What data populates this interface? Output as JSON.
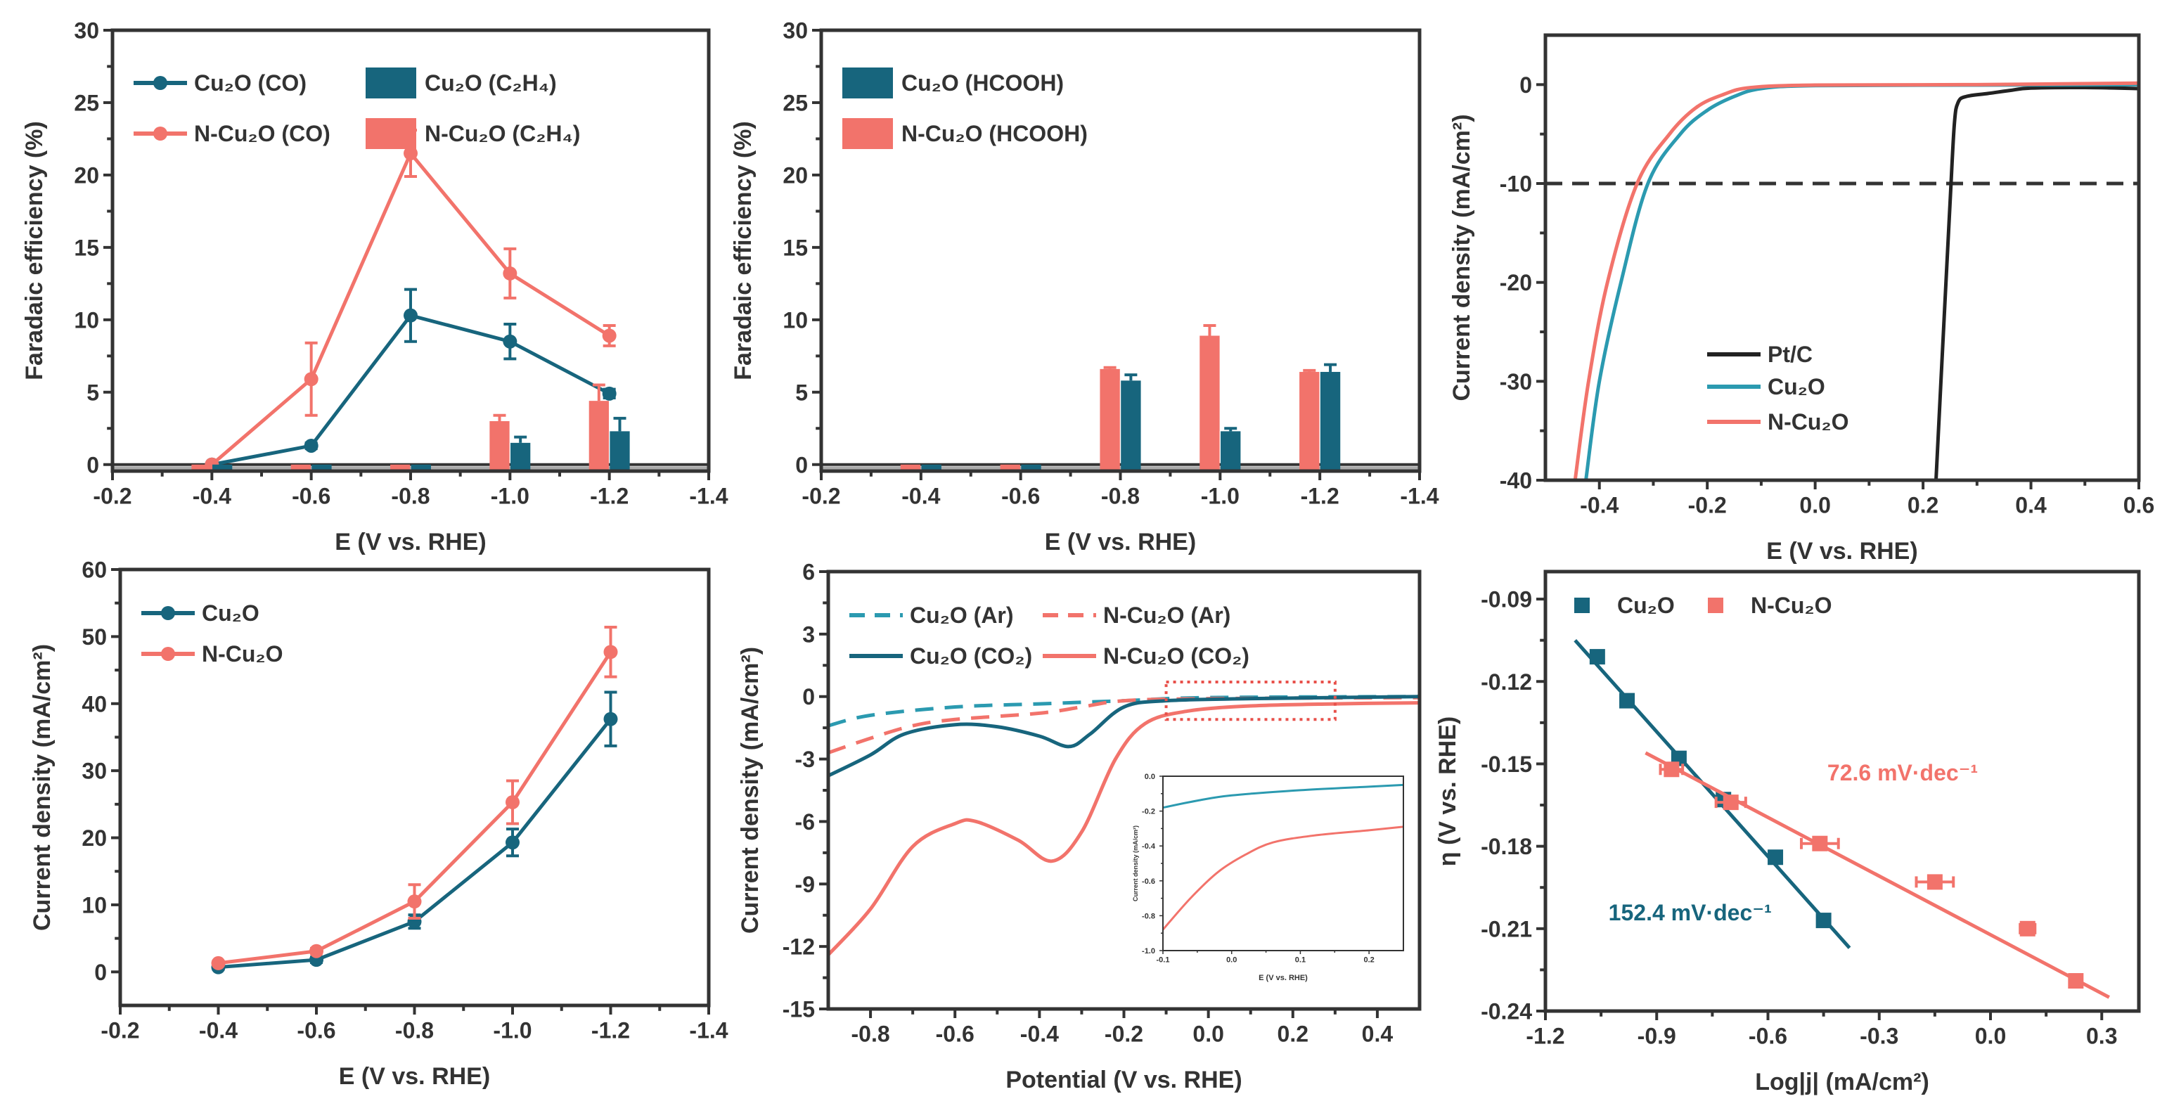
{
  "colors": {
    "teal": "#17657d",
    "teal_light": "#2b9ab0",
    "red": "#f2736b",
    "black": "#222222",
    "box_red": "#e8504a"
  },
  "chart_data": [
    {
      "id": "fe-co-c2h4",
      "type": "line+bar",
      "xlabel": "E (V vs. RHE)",
      "ylabel": "Faradaic efficiency (%)",
      "xlim": [
        -0.2,
        -1.4
      ],
      "ylim": [
        -0.45,
        30
      ],
      "xticks": [
        -0.2,
        -0.4,
        -0.6,
        -0.8,
        -1.0,
        -1.2,
        -1.4
      ],
      "xtick_labels": [
        "-0.2",
        "-0.4",
        "-0.6",
        "-0.8",
        "-1.0",
        "-1.2",
        "-1.4"
      ],
      "yticks": [
        0,
        5,
        10,
        15,
        20,
        25,
        30
      ],
      "ytick_labels": [
        "0",
        "5",
        "10",
        "15",
        "20",
        "25",
        "30"
      ],
      "zero_line": true,
      "series": [
        {
          "name": "Cu₂O (CO)",
          "kind": "line",
          "marker": "circle",
          "color": "teal",
          "x": [
            -0.4,
            -0.6,
            -0.8,
            -1.0,
            -1.2
          ],
          "y": [
            0,
            1.3,
            10.3,
            8.5,
            4.9
          ],
          "err": [
            0,
            0.2,
            1.8,
            1.2,
            0.3
          ]
        },
        {
          "name": "N-Cu₂O (CO)",
          "kind": "line",
          "marker": "circle",
          "color": "red",
          "x": [
            -0.4,
            -0.6,
            -0.8,
            -1.0,
            -1.2
          ],
          "y": [
            0,
            5.9,
            21.5,
            13.2,
            8.9
          ],
          "err": [
            0,
            2.5,
            1.6,
            1.7,
            0.7
          ]
        },
        {
          "name": "Cu₂O (C₂H₄)",
          "kind": "bar",
          "color": "teal",
          "x": [
            -0.4,
            -0.6,
            -0.8,
            -1.0,
            -1.2
          ],
          "y": [
            0,
            0,
            0,
            1.5,
            2.3
          ],
          "err": [
            0,
            0,
            0,
            0.4,
            0.9
          ]
        },
        {
          "name": "N-Cu₂O (C₂H₄)",
          "kind": "bar",
          "color": "red",
          "x": [
            -0.4,
            -0.6,
            -0.8,
            -1.0,
            -1.2
          ],
          "y": [
            0,
            0,
            0,
            3.0,
            4.4
          ],
          "err": [
            0,
            0,
            0,
            0.4,
            1.1
          ]
        }
      ]
    },
    {
      "id": "fe-hcooh",
      "type": "bar",
      "xlabel": "E (V vs. RHE)",
      "ylabel": "Faradaic efficiency (%)",
      "xlim": [
        -0.2,
        -1.4
      ],
      "ylim": [
        -0.45,
        30
      ],
      "xticks": [
        -0.2,
        -0.4,
        -0.6,
        -0.8,
        -1.0,
        -1.2,
        -1.4
      ],
      "xtick_labels": [
        "-0.2",
        "-0.4",
        "-0.6",
        "-0.8",
        "-1.0",
        "-1.2",
        "-1.4"
      ],
      "yticks": [
        0,
        5,
        10,
        15,
        20,
        25,
        30
      ],
      "ytick_labels": [
        "0",
        "5",
        "10",
        "15",
        "20",
        "25",
        "30"
      ],
      "zero_line": true,
      "series": [
        {
          "name": "Cu₂O (HCOOH)",
          "kind": "bar",
          "color": "teal",
          "x": [
            -0.4,
            -0.6,
            -0.8,
            -1.0,
            -1.2
          ],
          "y": [
            0,
            0,
            5.8,
            2.3,
            6.4
          ],
          "err": [
            0,
            0,
            0.4,
            0.2,
            0.5
          ]
        },
        {
          "name": "N-Cu₂O (HCOOH)",
          "kind": "bar",
          "color": "red",
          "x": [
            -0.4,
            -0.6,
            -0.8,
            -1.0,
            -1.2
          ],
          "y": [
            0,
            0,
            6.6,
            8.9,
            6.4
          ],
          "err": [
            0,
            0,
            0.1,
            0.7,
            0.1
          ]
        }
      ]
    },
    {
      "id": "her-lsv",
      "type": "line",
      "xlabel": "E (V vs. RHE)",
      "ylabel": "Current density (mA/cm²)",
      "xlim": [
        -0.5,
        0.6
      ],
      "ylim": [
        -40,
        5
      ],
      "xticks": [
        -0.4,
        -0.2,
        0.0,
        0.2,
        0.4,
        0.6
      ],
      "xtick_labels": [
        "-0.4",
        "-0.2",
        "0.0",
        "0.2",
        "0.4",
        "0.6"
      ],
      "yticks": [
        -40,
        -30,
        -20,
        -10,
        0
      ],
      "ytick_labels": [
        "-40",
        "-30",
        "-20",
        "-10",
        "0"
      ],
      "reference_line": -10,
      "series": [
        {
          "name": "Pt/C",
          "kind": "line",
          "smooth": true,
          "color": "black",
          "x": [
            0.224,
            0.235,
            0.25,
            0.258,
            0.265,
            0.28,
            0.32,
            0.36,
            0.4,
            0.5,
            0.6
          ],
          "y": [
            -40,
            -28,
            -12,
            -4,
            -1.8,
            -1.2,
            -0.9,
            -0.6,
            -0.35,
            -0.3,
            -0.4
          ]
        },
        {
          "name": "Cu₂O",
          "kind": "line",
          "smooth": true,
          "color": "teal_light",
          "x": [
            -0.425,
            -0.4,
            -0.36,
            -0.31,
            -0.25,
            -0.2,
            -0.15,
            -0.1,
            0.0,
            0.3,
            0.6
          ],
          "y": [
            -40,
            -30,
            -20,
            -10,
            -5,
            -2.6,
            -1.2,
            -0.4,
            -0.1,
            -0.05,
            0
          ]
        },
        {
          "name": "N-Cu₂O",
          "kind": "line",
          "smooth": true,
          "color": "red",
          "x": [
            -0.445,
            -0.42,
            -0.385,
            -0.33,
            -0.27,
            -0.22,
            -0.17,
            -0.12,
            0.0,
            0.3,
            0.6
          ],
          "y": [
            -40,
            -30,
            -20,
            -10,
            -5,
            -2.3,
            -1.0,
            -0.3,
            -0.05,
            0,
            0.15
          ]
        }
      ]
    },
    {
      "id": "total-current",
      "type": "line",
      "xlabel": "E (V vs. RHE)",
      "ylabel": "Current density (mA/cm²)",
      "xlim": [
        -0.2,
        -1.4
      ],
      "ylim": [
        -5,
        60
      ],
      "xticks": [
        -0.2,
        -0.4,
        -0.6,
        -0.8,
        -1.0,
        -1.2,
        -1.4
      ],
      "xtick_labels": [
        "-0.2",
        "-0.4",
        "-0.6",
        "-0.8",
        "-1.0",
        "-1.2",
        "-1.4"
      ],
      "yticks": [
        0,
        10,
        20,
        30,
        40,
        50,
        60
      ],
      "ytick_labels": [
        "0",
        "10",
        "20",
        "30",
        "40",
        "50",
        "60"
      ],
      "series": [
        {
          "name": "Cu₂O",
          "kind": "line",
          "marker": "circle",
          "color": "teal",
          "x": [
            -0.4,
            -0.6,
            -0.8,
            -1.0,
            -1.2
          ],
          "y": [
            0.7,
            1.8,
            7.5,
            19.3,
            37.7
          ],
          "err": [
            0.3,
            0.4,
            1.0,
            2.0,
            4.0
          ]
        },
        {
          "name": "N-Cu₂O",
          "kind": "line",
          "marker": "circle",
          "color": "red",
          "x": [
            -0.4,
            -0.6,
            -0.8,
            -1.0,
            -1.2
          ],
          "y": [
            1.3,
            3.1,
            10.5,
            25.3,
            47.7
          ],
          "err": [
            0.3,
            0.4,
            2.5,
            3.2,
            3.7
          ]
        }
      ]
    },
    {
      "id": "lsv-ar-co2",
      "type": "line",
      "xlabel": "Potential (V vs. RHE)",
      "ylabel": "Current density (mA/cm²)",
      "xlim": [
        -0.9,
        0.5
      ],
      "ylim": [
        -15,
        6
      ],
      "xticks": [
        -0.8,
        -0.6,
        -0.4,
        -0.2,
        0.0,
        0.2,
        0.4
      ],
      "xtick_labels": [
        "-0.8",
        "-0.6",
        "-0.4",
        "-0.2",
        "0.0",
        "0.2",
        "0.4"
      ],
      "yticks": [
        -15,
        -12,
        -9,
        -6,
        -3,
        0,
        3,
        6
      ],
      "ytick_labels": [
        "-15",
        "-12",
        "-9",
        "-6",
        "-3",
        "0",
        "3",
        "6"
      ],
      "series": [
        {
          "name": "Cu₂O (Ar)",
          "kind": "line",
          "dashed": true,
          "smooth": true,
          "color": "teal_light",
          "x": [
            -0.9,
            -0.8,
            -0.6,
            -0.4,
            -0.2,
            0.0,
            0.5
          ],
          "y": [
            -1.4,
            -0.9,
            -0.5,
            -0.35,
            -0.2,
            -0.05,
            0
          ]
        },
        {
          "name": "N-Cu₂O (Ar)",
          "kind": "line",
          "dashed": true,
          "smooth": true,
          "color": "red",
          "x": [
            -0.9,
            -0.8,
            -0.7,
            -0.6,
            -0.4,
            -0.3,
            -0.2,
            0.0,
            0.5
          ],
          "y": [
            -2.7,
            -2.0,
            -1.4,
            -1.1,
            -0.8,
            -0.5,
            -0.2,
            -0.1,
            -0.05
          ]
        },
        {
          "name": "Cu₂O (CO₂)",
          "kind": "line",
          "smooth": true,
          "color": "teal",
          "x": [
            -0.9,
            -0.8,
            -0.72,
            -0.6,
            -0.5,
            -0.4,
            -0.33,
            -0.28,
            -0.2,
            -0.1,
            0.1,
            0.5
          ],
          "y": [
            -3.8,
            -2.8,
            -1.8,
            -1.35,
            -1.45,
            -1.9,
            -2.4,
            -1.8,
            -0.5,
            -0.2,
            -0.1,
            0
          ]
        },
        {
          "name": "N-Cu₂O (CO₂)",
          "kind": "line",
          "smooth": true,
          "color": "red",
          "x": [
            -0.9,
            -0.8,
            -0.7,
            -0.6,
            -0.55,
            -0.45,
            -0.37,
            -0.3,
            -0.22,
            -0.15,
            -0.05,
            0.1,
            0.3,
            0.5
          ],
          "y": [
            -12.4,
            -10.2,
            -7.2,
            -6.1,
            -6.0,
            -6.9,
            -7.9,
            -6.5,
            -3.0,
            -1.3,
            -0.7,
            -0.45,
            -0.35,
            -0.3
          ]
        }
      ],
      "inset": {
        "xlabel": "E (V vs. RHE)",
        "ylabel": "Current density (mA/cm²)",
        "xlim": [
          -0.1,
          0.25
        ],
        "ylim": [
          -1.0,
          0.0
        ],
        "xticks": [
          -0.1,
          0.0,
          0.1,
          0.2
        ],
        "xtick_labels": [
          "-0.1",
          "0.0",
          "0.1",
          "0.2"
        ],
        "yticks": [
          -1.0,
          -0.8,
          -0.6,
          -0.4,
          -0.2,
          0.0
        ],
        "ytick_labels": [
          "-1.0",
          "-0.8",
          "-0.6",
          "-0.4",
          "-0.2",
          "0.0"
        ],
        "series": [
          {
            "name": "Cu₂O (CO₂)",
            "kind": "line",
            "smooth": true,
            "color": "teal_light",
            "x": [
              -0.1,
              -0.05,
              0.0,
              0.1,
              0.2,
              0.25
            ],
            "y": [
              -0.18,
              -0.14,
              -0.11,
              -0.08,
              -0.06,
              -0.05
            ]
          },
          {
            "name": "N-Cu₂O (CO₂)",
            "kind": "line",
            "smooth": true,
            "color": "red",
            "x": [
              -0.1,
              -0.06,
              -0.02,
              0.02,
              0.06,
              0.12,
              0.2,
              0.25
            ],
            "y": [
              -0.88,
              -0.7,
              -0.55,
              -0.45,
              -0.38,
              -0.34,
              -0.31,
              -0.29
            ]
          }
        ]
      }
    },
    {
      "id": "tafel",
      "type": "scatter",
      "xlabel": "Log|j| (mA/cm²)",
      "ylabel": "η (V vs. RHE)",
      "xlim": [
        -1.2,
        0.4
      ],
      "ylim": [
        -0.24,
        -0.08
      ],
      "xticks": [
        -1.2,
        -0.9,
        -0.6,
        -0.3,
        0.0,
        0.3
      ],
      "xtick_labels": [
        "-1.2",
        "-0.9",
        "-0.6",
        "-0.3",
        "0.0",
        "0.3"
      ],
      "yticks": [
        -0.24,
        -0.21,
        -0.18,
        -0.15,
        -0.12,
        -0.09
      ],
      "ytick_labels": [
        "-0.24",
        "-0.21",
        "-0.18",
        "-0.15",
        "-0.12",
        "-0.09"
      ],
      "series": [
        {
          "name": "Cu₂O",
          "kind": "scatter",
          "marker": "square",
          "color": "teal",
          "x": [
            -1.06,
            -0.98,
            -0.84,
            -0.72,
            -0.58,
            -0.45
          ],
          "y": [
            -0.111,
            -0.127,
            -0.148,
            -0.163,
            -0.184,
            -0.207
          ],
          "fit": {
            "x": [
              -1.12,
              -0.38
            ],
            "y": [
              -0.105,
              -0.217
            ]
          },
          "slope_label": "152.4 mV·dec⁻¹"
        },
        {
          "name": "N-Cu₂O",
          "kind": "scatter",
          "marker": "square",
          "color": "red",
          "x": [
            -0.86,
            -0.7,
            -0.46,
            -0.15,
            0.1,
            0.23
          ],
          "y": [
            -0.152,
            -0.164,
            -0.179,
            -0.193,
            -0.21,
            -0.229
          ],
          "xerr": [
            0.03,
            0.04,
            0.05,
            0.05,
            0.02,
            0.01
          ],
          "fit": {
            "x": [
              -0.93,
              0.32
            ],
            "y": [
              -0.146,
              -0.235
            ]
          },
          "slope_label": "72.6 mV·dec⁻¹"
        }
      ]
    }
  ]
}
